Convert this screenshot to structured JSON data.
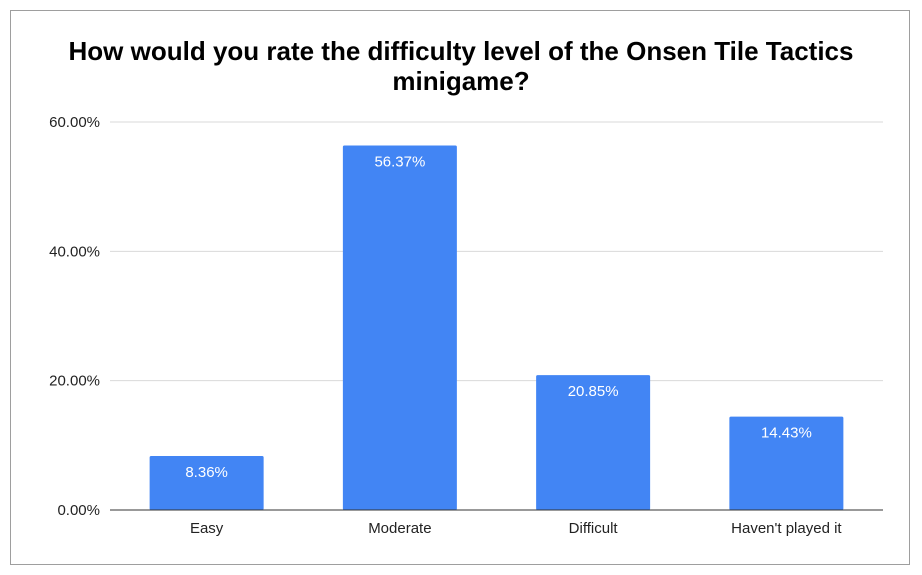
{
  "chart_data": {
    "type": "bar",
    "title": "How would you rate the difficulty level of the Onsen Tile Tactics minigame?",
    "categories": [
      "Easy",
      "Moderate",
      "Difficult",
      "Haven't played it"
    ],
    "values": [
      8.36,
      56.37,
      20.85,
      14.43
    ],
    "value_labels": [
      "8.36%",
      "56.37%",
      "20.85%",
      "14.43%"
    ],
    "y_ticks": [
      0,
      20,
      40,
      60
    ],
    "y_tick_labels": [
      "0.00%",
      "20.00%",
      "40.00%",
      "60.00%"
    ],
    "ylim": [
      0,
      60
    ],
    "grid": true,
    "legend": "none",
    "bar_color": "#4285f4",
    "grid_color": "#d9d9d9"
  }
}
